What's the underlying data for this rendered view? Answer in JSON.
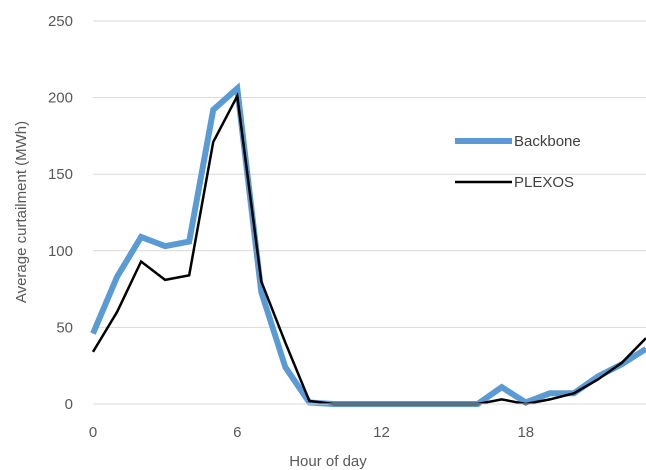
{
  "chart_data": {
    "type": "line",
    "title": "",
    "xlabel": "Hour of day",
    "ylabel": "Average curtailment (MWh)",
    "x": [
      0,
      1,
      2,
      3,
      4,
      5,
      6,
      7,
      8,
      9,
      10,
      11,
      12,
      13,
      14,
      15,
      16,
      17,
      18,
      19,
      20,
      21,
      22,
      23
    ],
    "xlim": [
      0,
      23
    ],
    "ylim": [
      0,
      250
    ],
    "x_ticks": [
      0,
      6,
      12,
      18
    ],
    "y_ticks": [
      0,
      50,
      100,
      150,
      200,
      250
    ],
    "grid": "horizontal",
    "legend_position": "right",
    "series": [
      {
        "name": "Backbone",
        "color": "#5b9bd5",
        "values": [
          46,
          83,
          109,
          103,
          106,
          192,
          206,
          73,
          24,
          1,
          0,
          0,
          0,
          0,
          0,
          0,
          0,
          11,
          1,
          7,
          7,
          18,
          26,
          36
        ]
      },
      {
        "name": "PLEXOS",
        "color": "#000000",
        "values": [
          34,
          60,
          93,
          81,
          84,
          171,
          201,
          80,
          40,
          2,
          0,
          0,
          0,
          0,
          0,
          0,
          0,
          3,
          0,
          3,
          7,
          16,
          27,
          43
        ]
      }
    ]
  }
}
